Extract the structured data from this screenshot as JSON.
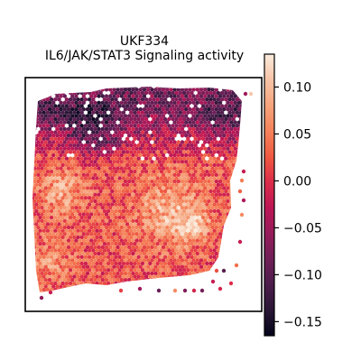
{
  "chart_data": {
    "type": "heatmap",
    "subtype": "spatial-hexbin",
    "title_lines": [
      "UKF334",
      "IL6/JAK/STAT3 Signaling activity"
    ],
    "xlabel": "",
    "ylabel": "",
    "colormap": "rocket",
    "colormap_stops": [
      "#03051a",
      "#2a1636",
      "#4c1d4b",
      "#701f57",
      "#961c5b",
      "#bd1655",
      "#dc2c4a",
      "#ef5a41",
      "#f5825a",
      "#f6a47c",
      "#f7c4a7",
      "#faebdd"
    ],
    "colorbar": {
      "vmin": -0.165,
      "vmax": 0.135,
      "ticks": [
        0.1,
        0.05,
        0.0,
        -0.05,
        -0.1,
        -0.15
      ],
      "tick_labels": [
        "0.10",
        "0.05",
        "0.00",
        "−0.05",
        "−0.10",
        "−0.15"
      ]
    },
    "value_summary": {
      "top_band_mean": -0.08,
      "upper_left_cluster": -0.16,
      "middle_band_mean": 0.02,
      "left_hotspot": 0.08,
      "center_right_hotspot": 0.09,
      "bottom_band_mean": 0.0
    }
  }
}
